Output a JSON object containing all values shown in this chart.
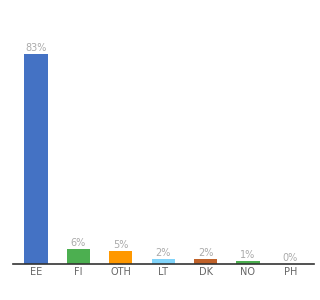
{
  "categories": [
    "EE",
    "FI",
    "OTH",
    "LT",
    "DK",
    "NO",
    "PH"
  ],
  "values": [
    83,
    6,
    5,
    2,
    2,
    1,
    0
  ],
  "labels": [
    "83%",
    "6%",
    "5%",
    "2%",
    "2%",
    "1%",
    "0%"
  ],
  "bar_colors": [
    "#4472c4",
    "#4caf50",
    "#ff9800",
    "#81d4fa",
    "#c0622a",
    "#4caf50",
    "#aaaaaa"
  ],
  "background_color": "#ffffff",
  "label_color": "#aaaaaa",
  "label_fontsize": 7,
  "tick_fontsize": 7,
  "bar_width": 0.55,
  "ylim": [
    0,
    95
  ]
}
